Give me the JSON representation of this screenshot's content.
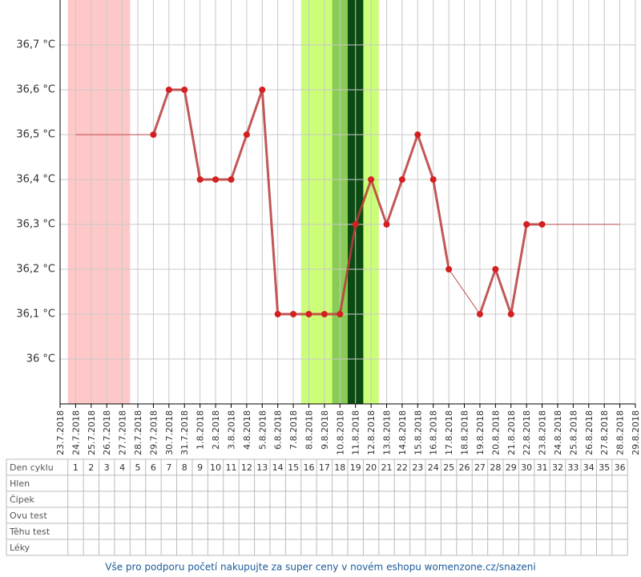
{
  "chart_data": {
    "type": "line",
    "x": [
      "23.7.2018",
      "24.7.2018",
      "25.7.2018",
      "26.7.2018",
      "27.7.2018",
      "28.7.2018",
      "29.7.2018",
      "30.7.2018",
      "31.7.2018",
      "1.8.2018",
      "2.8.2018",
      "3.8.2018",
      "4.8.2018",
      "5.8.2018",
      "6.8.2018",
      "7.8.2018",
      "8.8.2018",
      "9.8.2018",
      "10.8.2018",
      "11.8.2018",
      "12.8.2018",
      "13.8.2018",
      "14.8.2018",
      "15.8.2018",
      "16.8.2018",
      "17.8.2018",
      "18.8.2018",
      "19.8.2018",
      "20.8.2018",
      "21.8.2018",
      "22.8.2018",
      "23.8.2018",
      "24.8.2018",
      "25.8.2018",
      "26.8.2018",
      "27.8.2018",
      "28.8.2018",
      "29.8.2018"
    ],
    "series": [
      {
        "color": "#b83a3a",
        "marker_color": "#d42020",
        "values": [
          null,
          null,
          null,
          null,
          null,
          null,
          36.5,
          36.6,
          36.6,
          36.4,
          36.4,
          36.4,
          36.5,
          36.6,
          36.1,
          36.1,
          36.1,
          36.1,
          36.1,
          36.3,
          36.4,
          36.3,
          36.4,
          36.5,
          36.4,
          36.2,
          null,
          36.1,
          36.2,
          36.1,
          36.3,
          36.3,
          null,
          null,
          null,
          null,
          null,
          null
        ]
      }
    ],
    "bands": [
      {
        "start": "24.7.2018",
        "end": "27.7.2018",
        "color": "#ffc8c8"
      },
      {
        "start": "8.8.2018",
        "end": "12.8.2018",
        "color": "#ccff77"
      },
      {
        "start": "10.8.2018",
        "end": "10.8.2018",
        "color": "#88cc55"
      },
      {
        "start": "11.8.2018",
        "end": "11.8.2018",
        "color": "#0b4a12"
      }
    ],
    "ylim": [
      35.9,
      36.8
    ],
    "yticks": [
      {
        "value": 36,
        "label": "36 °C"
      },
      {
        "value": 36.1,
        "label": "36,1 °C"
      },
      {
        "value": 36.2,
        "label": "36,2 °C"
      },
      {
        "value": 36.3,
        "label": "36,3 °C"
      },
      {
        "value": 36.4,
        "label": "36,4 °C"
      },
      {
        "value": 36.5,
        "label": "36,5 °C"
      },
      {
        "value": 36.6,
        "label": "36,6 °C"
      },
      {
        "value": 36.7,
        "label": "36,7 °C"
      }
    ],
    "grid": true
  },
  "table": {
    "row_labels": [
      "Den cyklu",
      "Hlen",
      "Čípek",
      "Ovu test",
      "Těhu test",
      "Léky"
    ],
    "days": [
      1,
      2,
      3,
      4,
      5,
      6,
      7,
      8,
      9,
      10,
      11,
      12,
      13,
      14,
      15,
      16,
      17,
      18,
      19,
      20,
      21,
      22,
      23,
      24,
      25,
      26,
      27,
      28,
      29,
      30,
      31,
      32,
      33,
      34,
      35,
      36
    ]
  },
  "footer": "Vše pro podporu početí nakupujte za super ceny v novém eshopu womenzone.cz/snazeni"
}
